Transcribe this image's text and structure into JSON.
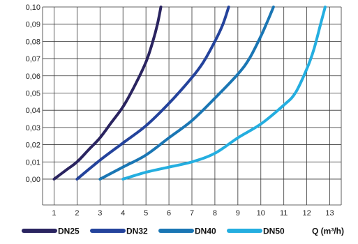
{
  "chart_data": {
    "type": "line",
    "title": "",
    "xlabel": "Q (m³/h)",
    "ylabel": "",
    "xlim": [
      0.5,
      13.5
    ],
    "ylim": [
      -0.015,
      0.1
    ],
    "x_ticks": [
      1,
      2,
      3,
      4,
      5,
      6,
      7,
      8,
      9,
      10,
      11,
      12,
      13
    ],
    "y_ticks": [
      0.0,
      0.01,
      0.02,
      0.03,
      0.04,
      0.05,
      0.06,
      0.07,
      0.08,
      0.09,
      0.1
    ],
    "x_tick_labels": [
      "1",
      "2",
      "3",
      "4",
      "5",
      "6",
      "7",
      "8",
      "9",
      "10",
      "11",
      "12",
      "13"
    ],
    "y_tick_labels": [
      "0,00",
      "0,01",
      "0,02",
      "0,03",
      "0,04",
      "0,05",
      "0,06",
      "0,07",
      "0,08",
      "0,09",
      "0,10"
    ],
    "grid": true,
    "legend": "bottom",
    "series": [
      {
        "name": "DN25",
        "color": "#2a2460",
        "points": [
          [
            1.0,
            0.0
          ],
          [
            1.5,
            0.005
          ],
          [
            2.0,
            0.01
          ],
          [
            2.5,
            0.017
          ],
          [
            3.0,
            0.024
          ],
          [
            3.5,
            0.033
          ],
          [
            4.0,
            0.042
          ],
          [
            4.5,
            0.054
          ],
          [
            5.0,
            0.068
          ],
          [
            5.3,
            0.08
          ],
          [
            5.5,
            0.09
          ],
          [
            5.65,
            0.1
          ]
        ]
      },
      {
        "name": "DN32",
        "color": "#24439c",
        "points": [
          [
            2.0,
            0.0
          ],
          [
            3.0,
            0.011
          ],
          [
            4.0,
            0.021
          ],
          [
            5.0,
            0.031
          ],
          [
            6.0,
            0.044
          ],
          [
            7.0,
            0.059
          ],
          [
            7.5,
            0.068
          ],
          [
            8.0,
            0.08
          ],
          [
            8.35,
            0.09
          ],
          [
            8.6,
            0.1
          ]
        ]
      },
      {
        "name": "DN40",
        "color": "#1a76b4",
        "points": [
          [
            3.0,
            0.0
          ],
          [
            4.0,
            0.007
          ],
          [
            5.0,
            0.014
          ],
          [
            6.0,
            0.024
          ],
          [
            7.0,
            0.034
          ],
          [
            8.0,
            0.047
          ],
          [
            9.0,
            0.061
          ],
          [
            9.5,
            0.07
          ],
          [
            10.0,
            0.083
          ],
          [
            10.3,
            0.092
          ],
          [
            10.55,
            0.1
          ]
        ]
      },
      {
        "name": "DN50",
        "color": "#24aee0",
        "points": [
          [
            4.0,
            0.0
          ],
          [
            5.0,
            0.004
          ],
          [
            6.0,
            0.007
          ],
          [
            7.0,
            0.01
          ],
          [
            8.0,
            0.015
          ],
          [
            9.0,
            0.024
          ],
          [
            10.0,
            0.032
          ],
          [
            11.0,
            0.043
          ],
          [
            11.5,
            0.05
          ],
          [
            12.0,
            0.064
          ],
          [
            12.3,
            0.075
          ],
          [
            12.6,
            0.09
          ],
          [
            12.8,
            0.1
          ]
        ]
      }
    ]
  }
}
